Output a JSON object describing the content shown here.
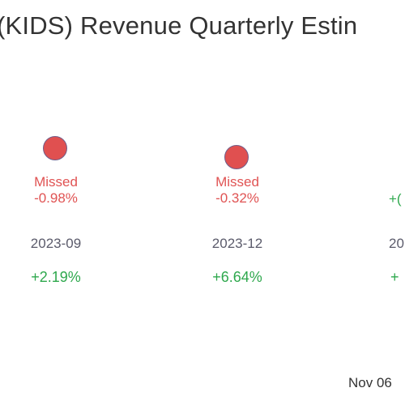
{
  "title": "(KIDS) Revenue Quarterly Estin",
  "chart_data": {
    "type": "scatter",
    "title": "(KIDS) Revenue Quarterly Estin",
    "categories": [
      "2023-09",
      "2023-12",
      "20"
    ],
    "points": [
      {
        "period": "2023-09",
        "status": "Missed",
        "surprise_label": "-0.98%",
        "surprise": -0.98,
        "growth_label": "+2.19%",
        "growth": 2.19
      },
      {
        "period": "2023-12",
        "status": "Missed",
        "surprise_label": "-0.32%",
        "surprise": -0.32,
        "growth_label": "+6.64%",
        "growth": 6.64
      },
      {
        "period": "20",
        "status": "",
        "surprise_label": "+(",
        "surprise": null,
        "growth_label": "+",
        "growth": null
      }
    ],
    "colors": {
      "missed": "#e05353",
      "growth": "#2ea84d",
      "period": "#5b5b6b"
    }
  },
  "footer": {
    "date": "Nov 06"
  }
}
